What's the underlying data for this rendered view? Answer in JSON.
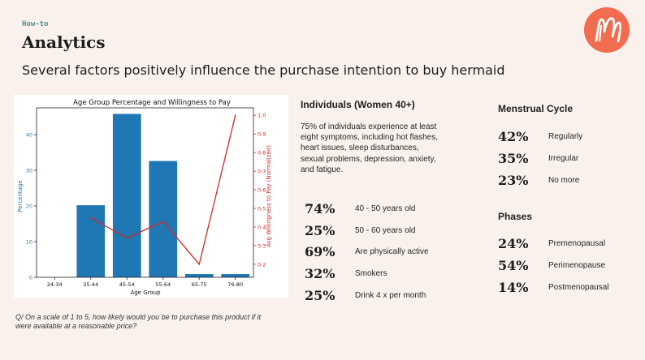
{
  "header": {
    "eyebrow": "How-to",
    "title": "Analytics",
    "subtitle": "Several factors positively influence the purchase intention to buy hermaid"
  },
  "logo": {
    "icon": "m-brand-logo-icon",
    "color": "#f26c4f"
  },
  "question": "Q/ On a scale of 1 to 5, how likely would you be to purchase this product if it were available at a reasonable price?",
  "individuals": {
    "heading": "Individuals (Women 40+)",
    "description": "75% of individuals experience at least eight symptoms, including hot flashes, heart issues, sleep disturbances, sexual problems, depression, anxiety, and fatigue.",
    "stats": [
      {
        "pct": "74%",
        "label": "40 - 50 years old"
      },
      {
        "pct": "25%",
        "label": "50 - 60 years old"
      },
      {
        "pct": "69%",
        "label": "Are physically active"
      },
      {
        "pct": "32%",
        "label": "Smokers"
      },
      {
        "pct": "25%",
        "label": "Drink 4 x per month"
      }
    ]
  },
  "menstrual": {
    "heading": "Menstrual Cycle",
    "stats": [
      {
        "pct": "42%",
        "label": "Regularly"
      },
      {
        "pct": "35%",
        "label": "Irregular"
      },
      {
        "pct": "23%",
        "label": "No more"
      }
    ]
  },
  "phases": {
    "heading": "Phases",
    "stats": [
      {
        "pct": "24%",
        "label": "Premenopausal"
      },
      {
        "pct": "54%",
        "label": "Perimenopause"
      },
      {
        "pct": "14%",
        "label": "Postmenopausal"
      }
    ]
  },
  "chart_data": {
    "type": "bar",
    "title": "Age Group Percentage and Willingness to Pay",
    "xlabel": "Age Group",
    "ylabel": "Percentage",
    "y2label": "Avg Willingness to Pay (Normalized)",
    "categories": [
      "24-34",
      "35-44",
      "45-54",
      "55-64",
      "65-75",
      "76-80"
    ],
    "values": [
      0,
      20.2,
      45.8,
      32.6,
      0.9,
      0.9
    ],
    "ylim": [
      0,
      47.5
    ],
    "yticks": [
      "0",
      "10",
      "20",
      "30",
      "40"
    ],
    "y2lim": [
      0.13,
      1.04
    ],
    "y2ticks": [
      "0.2",
      "0.3",
      "0.4",
      "0.5",
      "0.6",
      "0.7",
      "0.8",
      "0.9",
      "1.0"
    ],
    "line_series": {
      "name": "Avg Willingness to Pay (Normalized)",
      "x": [
        "35-44",
        "45-54",
        "55-64",
        "65-75",
        "76-80"
      ],
      "values": [
        0.45,
        0.34,
        0.43,
        0.2,
        1.0
      ]
    },
    "bar_color": "#1f77b4",
    "line_color": "#d62728"
  }
}
